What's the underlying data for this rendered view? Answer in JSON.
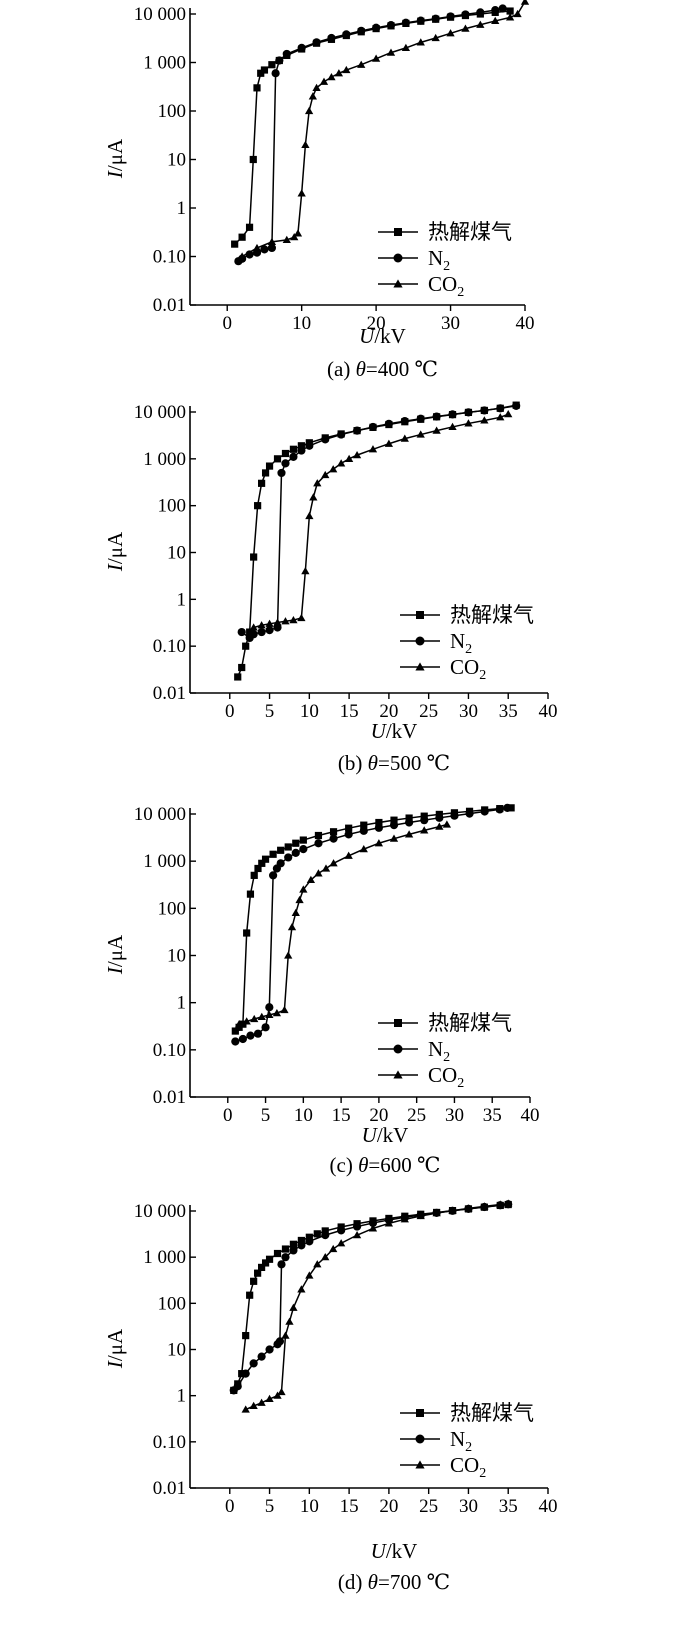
{
  "chart_data": [
    {
      "type": "line",
      "caption": "(a) θ=400 ℃",
      "xlabel": "U/kV",
      "ylabel": "I/μA",
      "xlim": [
        -5,
        40
      ],
      "ylim": [
        0.01,
        10000
      ],
      "yscale": "log",
      "xticks": [
        0,
        10,
        20,
        30,
        40
      ],
      "xtick_labels": [
        "0",
        "10",
        "20",
        "30",
        "40"
      ],
      "yticks": [
        0.01,
        0.1,
        1,
        10,
        100,
        1000,
        10000
      ],
      "ytick_labels": [
        "0.01",
        "0.10",
        "1",
        "10",
        "100",
        "1 000",
        "10 000"
      ],
      "legend_position": "bottom-right",
      "grid": false,
      "series": [
        {
          "name": "热解煤气",
          "marker": "square",
          "x": [
            1.0,
            2.0,
            3.0,
            3.5,
            4.0,
            4.5,
            5.0,
            6.0,
            7.0,
            8.0,
            10.0,
            12.0,
            14.0,
            16.0,
            18.0,
            20.0,
            22.0,
            24.0,
            26.0,
            28.0,
            30.0,
            32.0,
            34.0,
            36.0,
            38.0
          ],
          "y": [
            0.18,
            0.25,
            0.4,
            10,
            300,
            600,
            700,
            900,
            1100,
            1400,
            1900,
            2500,
            3000,
            3600,
            4300,
            5000,
            5700,
            6400,
            7100,
            7800,
            8600,
            9300,
            10000,
            10800,
            11500
          ]
        },
        {
          "name": "N2",
          "marker": "circle",
          "x": [
            1.5,
            2.0,
            3.0,
            4.0,
            5.0,
            6.0,
            6.5,
            7.0,
            8.0,
            10.0,
            12.0,
            14.0,
            16.0,
            18.0,
            20.0,
            22.0,
            24.0,
            26.0,
            28.0,
            30.0,
            32.0,
            34.0,
            36.0,
            37.0
          ],
          "y": [
            0.08,
            0.09,
            0.11,
            0.12,
            0.14,
            0.15,
            600,
            1100,
            1500,
            2000,
            2600,
            3200,
            3800,
            4500,
            5200,
            5900,
            6600,
            7300,
            8000,
            8900,
            9800,
            10800,
            12000,
            13000
          ]
        },
        {
          "name": "CO2",
          "marker": "triangle",
          "x": [
            2.0,
            4.0,
            6.0,
            8.0,
            9.0,
            9.5,
            10.0,
            10.5,
            11.0,
            11.5,
            12.0,
            13.0,
            14.0,
            15.0,
            16.0,
            18.0,
            20.0,
            22.0,
            24.0,
            26.0,
            28.0,
            30.0,
            32.0,
            34.0,
            36.0,
            38.0,
            39.0,
            40.0
          ],
          "y": [
            0.1,
            0.15,
            0.2,
            0.22,
            0.25,
            0.3,
            2,
            20,
            100,
            200,
            300,
            400,
            500,
            600,
            700,
            900,
            1200,
            1600,
            2000,
            2600,
            3200,
            4000,
            5000,
            6000,
            7200,
            8500,
            10000,
            18000
          ]
        }
      ]
    },
    {
      "type": "line",
      "caption": "(b) θ=500 ℃",
      "xlabel": "U/kV",
      "ylabel": "I/μA",
      "xlim": [
        -5,
        40
      ],
      "ylim": [
        0.01,
        10000
      ],
      "yscale": "log",
      "xticks": [
        0,
        5,
        10,
        15,
        20,
        25,
        30,
        35,
        40
      ],
      "xtick_labels": [
        "0",
        "5",
        "10",
        "15",
        "20",
        "25",
        "30",
        "35",
        "40"
      ],
      "yticks": [
        0.01,
        0.1,
        1,
        10,
        100,
        1000,
        10000
      ],
      "ytick_labels": [
        "0.01",
        "0.10",
        "1",
        "10",
        "100",
        "1 000",
        "10 000"
      ],
      "legend_position": "bottom-right",
      "grid": false,
      "series": [
        {
          "name": "热解煤气",
          "marker": "square",
          "x": [
            1.0,
            1.5,
            2.0,
            2.5,
            3.0,
            3.5,
            4.0,
            4.5,
            5.0,
            6.0,
            7.0,
            8.0,
            9.0,
            10.0,
            12.0,
            14.0,
            16.0,
            18.0,
            20.0,
            22.0,
            24.0,
            26.0,
            28.0,
            30.0,
            32.0,
            34.0,
            36.0
          ],
          "y": [
            0.022,
            0.035,
            0.1,
            0.2,
            8,
            100,
            300,
            500,
            700,
            1000,
            1300,
            1600,
            1900,
            2200,
            2800,
            3400,
            4000,
            4700,
            5400,
            6200,
            7000,
            7900,
            8800,
            9800,
            10800,
            12000,
            14000
          ]
        },
        {
          "name": "N2",
          "marker": "circle",
          "x": [
            1.5,
            2.5,
            3.0,
            4.0,
            5.0,
            6.0,
            6.5,
            7.0,
            8.0,
            9.0,
            10.0,
            12.0,
            14.0,
            16.0,
            18.0,
            20.0,
            22.0,
            24.0,
            26.0,
            28.0,
            30.0,
            32.0,
            34.0,
            36.0
          ],
          "y": [
            0.2,
            0.15,
            0.18,
            0.2,
            0.22,
            0.25,
            500,
            800,
            1100,
            1500,
            1900,
            2600,
            3300,
            4000,
            4800,
            5600,
            6400,
            7200,
            8000,
            8900,
            9800,
            10800,
            12000,
            13500
          ]
        },
        {
          "name": "CO2",
          "marker": "triangle",
          "x": [
            3.0,
            4.0,
            5.0,
            6.0,
            7.0,
            8.0,
            9.0,
            9.5,
            10.0,
            10.5,
            11.0,
            12.0,
            13.0,
            14.0,
            15.0,
            16.0,
            18.0,
            20.0,
            22.0,
            24.0,
            26.0,
            28.0,
            30.0,
            32.0,
            34.0,
            35.0
          ],
          "y": [
            0.25,
            0.28,
            0.3,
            0.32,
            0.34,
            0.36,
            0.4,
            4,
            60,
            150,
            300,
            450,
            600,
            800,
            1000,
            1200,
            1600,
            2100,
            2700,
            3300,
            4000,
            4800,
            5700,
            6600,
            7700,
            9000
          ]
        }
      ]
    },
    {
      "type": "line",
      "caption": "(c) θ=600 ℃",
      "xlabel": "U/kV",
      "ylabel": "I/μA",
      "xlim": [
        -5,
        40
      ],
      "ylim": [
        0.01,
        10000
      ],
      "yscale": "log",
      "xticks": [
        0,
        5,
        10,
        15,
        20,
        25,
        30,
        35,
        40
      ],
      "xtick_labels": [
        "0",
        "5",
        "10",
        "15",
        "20",
        "25",
        "30",
        "35",
        "40"
      ],
      "yticks": [
        0.01,
        0.1,
        1,
        10,
        100,
        1000,
        10000
      ],
      "ytick_labels": [
        "0.01",
        "0.10",
        "1",
        "10",
        "100",
        "1 000",
        "10 000"
      ],
      "legend_position": "bottom-right",
      "grid": false,
      "series": [
        {
          "name": "热解煤气",
          "marker": "square",
          "x": [
            1.0,
            1.5,
            2.0,
            2.5,
            3.0,
            3.5,
            4.0,
            4.5,
            5.0,
            6.0,
            7.0,
            8.0,
            9.0,
            10.0,
            12.0,
            14.0,
            16.0,
            18.0,
            20.0,
            22.0,
            24.0,
            26.0,
            28.0,
            30.0,
            32.0,
            34.0,
            36.0,
            37.5
          ],
          "y": [
            0.25,
            0.3,
            0.35,
            30,
            200,
            500,
            700,
            900,
            1100,
            1400,
            1700,
            2000,
            2400,
            2800,
            3500,
            4200,
            5000,
            5800,
            6600,
            7400,
            8200,
            9000,
            9800,
            10600,
            11400,
            12200,
            13000,
            13500
          ]
        },
        {
          "name": "N2",
          "marker": "circle",
          "x": [
            1.0,
            2.0,
            3.0,
            4.0,
            5.0,
            5.5,
            6.0,
            6.5,
            7.0,
            8.0,
            9.0,
            10.0,
            12.0,
            14.0,
            16.0,
            18.0,
            20.0,
            22.0,
            24.0,
            26.0,
            28.0,
            30.0,
            32.0,
            34.0,
            36.0,
            37.0
          ],
          "y": [
            0.15,
            0.17,
            0.2,
            0.22,
            0.3,
            0.8,
            500,
            700,
            900,
            1200,
            1500,
            1800,
            2400,
            3000,
            3700,
            4400,
            5100,
            5800,
            6600,
            7400,
            8300,
            9200,
            10200,
            11300,
            12500,
            13500
          ]
        },
        {
          "name": "CO2",
          "marker": "triangle",
          "x": [
            1.5,
            2.5,
            3.5,
            4.5,
            5.5,
            6.5,
            7.5,
            8.0,
            8.5,
            9.0,
            9.5,
            10.0,
            11.0,
            12.0,
            13.0,
            14.0,
            16.0,
            18.0,
            20.0,
            22.0,
            24.0,
            26.0,
            28.0,
            29.0
          ],
          "y": [
            0.35,
            0.4,
            0.45,
            0.5,
            0.55,
            0.6,
            0.7,
            10,
            40,
            80,
            150,
            250,
            400,
            550,
            700,
            900,
            1300,
            1800,
            2400,
            3000,
            3700,
            4500,
            5400,
            6000
          ]
        }
      ]
    },
    {
      "type": "line",
      "caption": "(d) θ=700 ℃",
      "xlabel": "U/kV",
      "ylabel": "I/μA",
      "xlim": [
        -5,
        40
      ],
      "ylim": [
        0.01,
        10000
      ],
      "yscale": "log",
      "xticks": [
        0,
        5,
        10,
        15,
        20,
        25,
        30,
        35,
        40
      ],
      "xtick_labels": [
        "0",
        "5",
        "10",
        "15",
        "20",
        "25",
        "30",
        "35",
        "40"
      ],
      "yticks": [
        0.01,
        0.1,
        1,
        10,
        100,
        1000,
        10000
      ],
      "ytick_labels": [
        "0.01",
        "0.10",
        "1",
        "10",
        "100",
        "1 000",
        "10 000"
      ],
      "legend_position": "bottom-right",
      "grid": false,
      "series": [
        {
          "name": "热解煤气",
          "marker": "square",
          "x": [
            0.5,
            1.0,
            1.5,
            2.0,
            2.5,
            3.0,
            3.5,
            4.0,
            4.5,
            5.0,
            6.0,
            7.0,
            8.0,
            9.0,
            10.0,
            11.0,
            12.0,
            14.0,
            16.0,
            18.0,
            20.0,
            22.0,
            24.0,
            26.0,
            28.0,
            30.0,
            32.0,
            34.0,
            35.0
          ],
          "y": [
            1.3,
            1.8,
            3,
            20,
            150,
            300,
            450,
            600,
            750,
            900,
            1200,
            1500,
            1900,
            2300,
            2700,
            3200,
            3700,
            4500,
            5300,
            6100,
            6900,
            7700,
            8500,
            9300,
            10200,
            11100,
            12100,
            13200,
            13800
          ]
        },
        {
          "name": "N2",
          "marker": "circle",
          "x": [
            0.5,
            1.0,
            2.0,
            3.0,
            4.0,
            5.0,
            6.0,
            6.3,
            6.5,
            7.0,
            8.0,
            9.0,
            10.0,
            12.0,
            14.0,
            16.0,
            18.0,
            20.0,
            22.0,
            24.0,
            26.0,
            28.0,
            30.0,
            32.0,
            34.0,
            35.0
          ],
          "y": [
            1.3,
            1.6,
            3,
            5,
            7,
            10,
            13,
            15,
            700,
            1000,
            1400,
            1800,
            2200,
            3000,
            3800,
            4600,
            5500,
            6400,
            7300,
            8200,
            9100,
            10100,
            11100,
            12200,
            13300,
            14000
          ]
        },
        {
          "name": "CO2",
          "marker": "triangle",
          "x": [
            2.0,
            3.0,
            4.0,
            5.0,
            6.0,
            6.5,
            7.0,
            7.5,
            8.0,
            9.0,
            10.0,
            11.0,
            12.0,
            13.0,
            14.0,
            16.0,
            18.0,
            20.0,
            22.0,
            24.0,
            26.0,
            28.0,
            30.0,
            32.0,
            34.0,
            35.0
          ],
          "y": [
            0.5,
            0.6,
            0.7,
            0.85,
            1.0,
            1.2,
            20,
            40,
            80,
            200,
            400,
            700,
            1000,
            1500,
            2000,
            3000,
            4200,
            5400,
            6600,
            7800,
            9000,
            10200,
            11400,
            12600,
            13800,
            14500
          ]
        }
      ]
    }
  ]
}
